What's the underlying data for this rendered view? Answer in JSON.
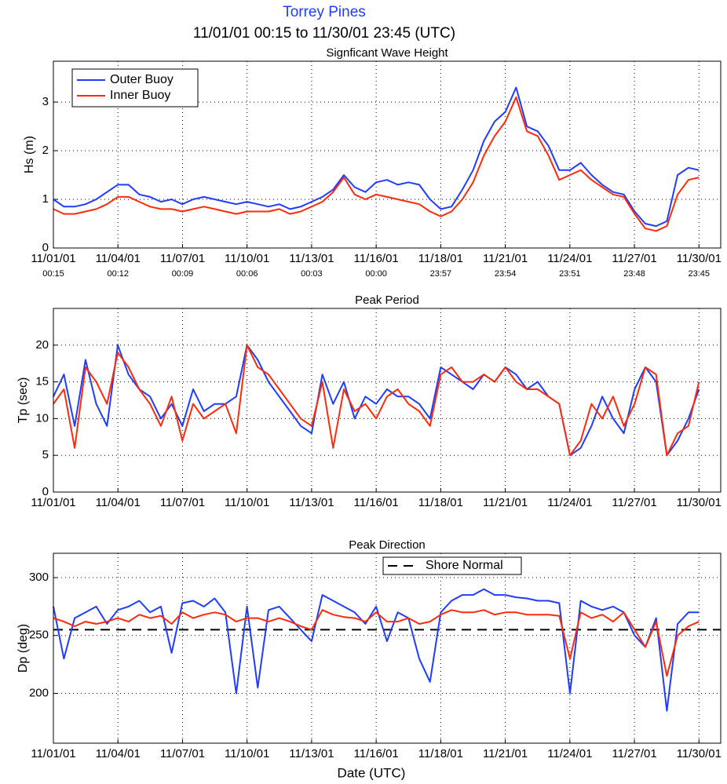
{
  "header": {
    "title": "Torrey Pines",
    "subtitle": "11/01/01 00:15 to 11/30/01 23:45 (UTC)"
  },
  "chart_data": [
    {
      "type": "line",
      "title": "Signficant Wave Height",
      "ylabel": "Hs (m)",
      "x": [
        1.01,
        1.5,
        2,
        2.5,
        3,
        3.5,
        4,
        4.5,
        5,
        5.5,
        6,
        6.5,
        7,
        7.5,
        8,
        8.5,
        9,
        9.5,
        10,
        10.5,
        11,
        11.5,
        12,
        12.5,
        13,
        13.5,
        14,
        14.5,
        15,
        15.5,
        16,
        16.5,
        17,
        17.5,
        18,
        18.5,
        19,
        19.5,
        20,
        20.5,
        21,
        21.5,
        22,
        22.5,
        23,
        23.5,
        24,
        24.5,
        25,
        25.5,
        26,
        26.5,
        27,
        27.5,
        28,
        28.5,
        29,
        29.5,
        30,
        30.5,
        30.99
      ],
      "xlim": [
        1.0104,
        32.0
      ],
      "ylim": [
        0,
        3.84
      ],
      "xticks": [
        {
          "value": 1.0104,
          "label": "11/01/01",
          "time": "00:15"
        },
        {
          "value": 4.0083,
          "label": "11/04/01",
          "time": "00:12"
        },
        {
          "value": 7.0063,
          "label": "11/07/01",
          "time": "00:09"
        },
        {
          "value": 10.0042,
          "label": "11/10/01",
          "time": "00:06"
        },
        {
          "value": 13.0021,
          "label": "11/13/01",
          "time": "00:03"
        },
        {
          "value": 16.0,
          "label": "11/16/01",
          "time": "00:00"
        },
        {
          "value": 18.9979,
          "label": "11/18/01",
          "time": "23:57"
        },
        {
          "value": 21.9958,
          "label": "11/21/01",
          "time": "23:54"
        },
        {
          "value": 24.9938,
          "label": "11/24/01",
          "time": "23:51"
        },
        {
          "value": 27.9917,
          "label": "11/27/01",
          "time": "23:48"
        },
        {
          "value": 30.9896,
          "label": "11/30/01",
          "time": "23:45"
        }
      ],
      "yticks": [
        0,
        1,
        2,
        3
      ],
      "grid": true,
      "legend": "upper left",
      "series": [
        {
          "name": "Outer Buoy",
          "color": "#1f3cff",
          "values": [
            1.0,
            0.85,
            0.85,
            0.9,
            1.0,
            1.15,
            1.3,
            1.3,
            1.1,
            1.05,
            0.95,
            1.0,
            0.9,
            1.0,
            1.05,
            1.0,
            0.95,
            0.9,
            0.95,
            0.9,
            0.85,
            0.9,
            0.8,
            0.85,
            0.95,
            1.05,
            1.2,
            1.5,
            1.25,
            1.15,
            1.35,
            1.4,
            1.3,
            1.35,
            1.3,
            1.0,
            0.8,
            0.85,
            1.2,
            1.6,
            2.2,
            2.6,
            2.8,
            3.3,
            2.5,
            2.4,
            2.1,
            1.6,
            1.6,
            1.75,
            1.5,
            1.3,
            1.15,
            1.1,
            0.75,
            0.5,
            0.45,
            0.55,
            1.5,
            1.65,
            1.6
          ]
        },
        {
          "name": "Inner Buoy",
          "color": "#ff2a0a",
          "values": [
            0.8,
            0.7,
            0.7,
            0.75,
            0.8,
            0.9,
            1.05,
            1.05,
            0.95,
            0.85,
            0.8,
            0.8,
            0.75,
            0.8,
            0.85,
            0.8,
            0.75,
            0.7,
            0.75,
            0.75,
            0.75,
            0.8,
            0.7,
            0.75,
            0.85,
            0.95,
            1.15,
            1.45,
            1.1,
            1.0,
            1.1,
            1.05,
            1.0,
            0.95,
            0.9,
            0.75,
            0.65,
            0.75,
            1.0,
            1.35,
            1.9,
            2.3,
            2.6,
            3.1,
            2.4,
            2.3,
            1.9,
            1.4,
            1.5,
            1.6,
            1.4,
            1.25,
            1.1,
            1.05,
            0.7,
            0.4,
            0.35,
            0.45,
            1.1,
            1.4,
            1.45
          ]
        }
      ]
    },
    {
      "type": "line",
      "title": "Peak Period",
      "ylabel": "Tp (sec)",
      "x": [
        1.01,
        1.5,
        2,
        2.5,
        3,
        3.5,
        4,
        4.5,
        5,
        5.5,
        6,
        6.5,
        7,
        7.5,
        8,
        8.5,
        9,
        9.5,
        10,
        10.5,
        11,
        11.5,
        12,
        12.5,
        13,
        13.5,
        14,
        14.5,
        15,
        15.5,
        16,
        16.5,
        17,
        17.5,
        18,
        18.5,
        19,
        19.5,
        20,
        20.5,
        21,
        21.5,
        22,
        22.5,
        23,
        23.5,
        24,
        24.5,
        25,
        25.5,
        26,
        26.5,
        27,
        27.5,
        28,
        28.5,
        29,
        29.5,
        30,
        30.5,
        30.99
      ],
      "xlim": [
        1.0104,
        32.0
      ],
      "ylim": [
        0,
        25
      ],
      "xticks": [
        {
          "value": 1.0104,
          "label": "11/01/01"
        },
        {
          "value": 4.0083,
          "label": "11/04/01"
        },
        {
          "value": 7.0063,
          "label": "11/07/01"
        },
        {
          "value": 10.0042,
          "label": "11/10/01"
        },
        {
          "value": 13.0021,
          "label": "11/13/01"
        },
        {
          "value": 16.0,
          "label": "11/16/01"
        },
        {
          "value": 18.9979,
          "label": "11/18/01"
        },
        {
          "value": 21.9958,
          "label": "11/21/01"
        },
        {
          "value": 24.9938,
          "label": "11/24/01"
        },
        {
          "value": 27.9917,
          "label": "11/27/01"
        },
        {
          "value": 30.9896,
          "label": "11/30/01"
        }
      ],
      "yticks": [
        0,
        5,
        10,
        15,
        20
      ],
      "grid": true,
      "series": [
        {
          "color": "#1f3cff",
          "values": [
            13,
            16,
            9,
            18,
            12,
            9,
            20,
            16,
            14,
            13,
            10,
            12,
            9,
            14,
            11,
            12,
            12,
            13,
            20,
            18,
            15,
            13,
            11,
            9,
            8,
            16,
            12,
            15,
            10,
            13,
            12,
            14,
            13,
            13,
            12,
            10,
            17,
            16,
            15,
            14,
            16,
            15,
            17,
            16,
            14,
            15,
            13,
            12,
            5,
            6,
            9,
            13,
            10,
            8,
            14,
            17,
            15,
            5,
            7,
            10,
            14
          ]
        },
        {
          "color": "#ff2a0a",
          "values": [
            12,
            14,
            6,
            17,
            15,
            12,
            19,
            17,
            14,
            12,
            9,
            13,
            7,
            12,
            10,
            11,
            12,
            8,
            20,
            17,
            16,
            14,
            12,
            10,
            9,
            15,
            6,
            14,
            11,
            12,
            10,
            13,
            14,
            12,
            11,
            9,
            16,
            17,
            15,
            15,
            16,
            15,
            17,
            15,
            14,
            14,
            13,
            12,
            5,
            7,
            12,
            10,
            13,
            9,
            12,
            17,
            16,
            5,
            8,
            9,
            15
          ]
        }
      ]
    },
    {
      "type": "line",
      "title": "Peak Direction",
      "ylabel": "Dp (deg)",
      "xlabel": "Date (UTC)",
      "x": [
        1.01,
        1.5,
        2,
        2.5,
        3,
        3.5,
        4,
        4.5,
        5,
        5.5,
        6,
        6.5,
        7,
        7.5,
        8,
        8.5,
        9,
        9.5,
        10,
        10.5,
        11,
        11.5,
        12,
        12.5,
        13,
        13.5,
        14,
        14.5,
        15,
        15.5,
        16,
        16.5,
        17,
        17.5,
        18,
        18.5,
        19,
        19.5,
        20,
        20.5,
        21,
        21.5,
        22,
        22.5,
        23,
        23.5,
        24,
        24.5,
        25,
        25.5,
        26,
        26.5,
        27,
        27.5,
        28,
        28.5,
        29,
        29.5,
        30,
        30.5,
        30.99
      ],
      "xlim": [
        1.0104,
        32.0
      ],
      "ylim": [
        157,
        321
      ],
      "xticks": [
        {
          "value": 1.0104,
          "label": "11/01/01"
        },
        {
          "value": 4.0083,
          "label": "11/04/01"
        },
        {
          "value": 7.0063,
          "label": "11/07/01"
        },
        {
          "value": 10.0042,
          "label": "11/10/01"
        },
        {
          "value": 13.0021,
          "label": "11/13/01"
        },
        {
          "value": 16.0,
          "label": "11/16/01"
        },
        {
          "value": 18.9979,
          "label": "11/18/01"
        },
        {
          "value": 21.9958,
          "label": "11/21/01"
        },
        {
          "value": 24.9938,
          "label": "11/24/01"
        },
        {
          "value": 27.9917,
          "label": "11/27/01"
        },
        {
          "value": 30.9896,
          "label": "11/30/01"
        }
      ],
      "yticks": [
        200,
        250,
        300
      ],
      "grid": true,
      "legend": "upper right",
      "reference": {
        "name": "Shore Normal",
        "value": 255,
        "color": "#000000"
      },
      "series": [
        {
          "color": "#1f3cff",
          "values": [
            275,
            230,
            265,
            270,
            275,
            260,
            272,
            275,
            280,
            270,
            275,
            235,
            278,
            280,
            275,
            282,
            270,
            200,
            275,
            205,
            272,
            275,
            265,
            255,
            245,
            285,
            280,
            275,
            270,
            260,
            275,
            245,
            270,
            265,
            230,
            210,
            270,
            280,
            285,
            285,
            290,
            285,
            285,
            283,
            282,
            280,
            280,
            278,
            200,
            280,
            275,
            272,
            275,
            270,
            250,
            240,
            265,
            185,
            260,
            270,
            270
          ]
        },
        {
          "color": "#ff2a0a",
          "values": [
            265,
            262,
            258,
            262,
            260,
            262,
            265,
            262,
            268,
            265,
            267,
            260,
            270,
            265,
            268,
            270,
            268,
            262,
            265,
            265,
            262,
            265,
            262,
            258,
            255,
            272,
            268,
            266,
            265,
            262,
            270,
            262,
            262,
            265,
            260,
            262,
            268,
            272,
            270,
            270,
            272,
            268,
            270,
            270,
            268,
            268,
            268,
            267,
            230,
            270,
            265,
            268,
            262,
            270,
            255,
            240,
            262,
            215,
            250,
            258,
            262
          ]
        }
      ]
    }
  ]
}
